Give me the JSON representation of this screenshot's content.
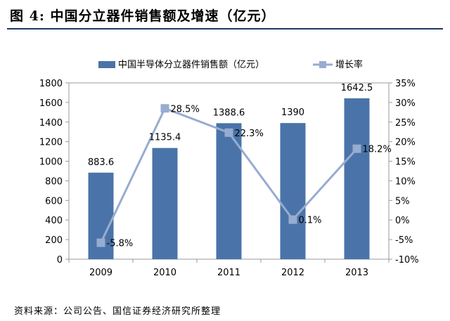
{
  "figure_title": "图 4:  中国分立器件销售额及增速（亿元）",
  "source": "资料来源：公司公告、国信证券经济研究所整理",
  "colors": {
    "bar": "#4a74a9",
    "line": "#97acd0",
    "frame": "#9a9a9a",
    "title_rule": "#1f3864"
  },
  "chart_data": {
    "type": "bar",
    "categories": [
      "2009",
      "2010",
      "2011",
      "2012",
      "2013"
    ],
    "series": [
      {
        "name": "中国半导体分立器件销售额（亿元）",
        "type": "bar",
        "axis": "left",
        "values": [
          883.6,
          1135.4,
          1388.6,
          1390,
          1642.5
        ],
        "labels": [
          "883.6",
          "1135.4",
          "1388.6",
          "1390",
          "1642.5"
        ]
      },
      {
        "name": "增长率",
        "type": "line",
        "axis": "right",
        "values": [
          -5.8,
          28.5,
          22.3,
          0.1,
          18.2
        ],
        "labels": [
          "-5.8%",
          "28.5%",
          "22.3%",
          "0.1%",
          "18.2%"
        ]
      }
    ],
    "y_left": {
      "min": 0,
      "max": 1800,
      "ticks": [
        "0",
        "200",
        "400",
        "600",
        "800",
        "1000",
        "1200",
        "1400",
        "1600",
        "1800"
      ]
    },
    "y_right": {
      "min": -10,
      "max": 35,
      "ticks": [
        "-10%",
        "-5%",
        "0%",
        "5%",
        "10%",
        "15%",
        "20%",
        "25%",
        "30%",
        "35%"
      ]
    },
    "legend_position": "top",
    "grid": false
  }
}
